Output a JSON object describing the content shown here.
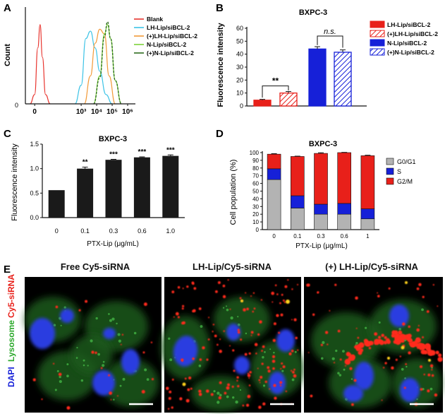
{
  "panels": {
    "A": {
      "letter": "A",
      "ylabel": "Count",
      "x_ticks": [
        "0",
        "10³",
        "10⁴",
        "10⁵",
        "10⁶"
      ],
      "y_tick": "0",
      "legend": [
        {
          "label": "Blank",
          "color": "#e8342e"
        },
        {
          "label": "LH-Lip/siBCL-2",
          "color": "#3cc3e6"
        },
        {
          "label": "(+)LH-Lip/siBCL-2",
          "color": "#f29a38"
        },
        {
          "label": "N-Lip/siBCL-2",
          "color": "#7dd23a"
        },
        {
          "label": "(+)N-Lip/siBCL-2",
          "color": "#2e6d1e"
        }
      ]
    },
    "B": {
      "letter": "B"
    },
    "C": {
      "letter": "C"
    },
    "D": {
      "letter": "D"
    },
    "E": {
      "letter": "E",
      "stain_labels": {
        "dapi": "DAPI",
        "lysosome": "Lysosome",
        "cy5": "Cy5-siRNA"
      },
      "images": [
        {
          "title": "Free Cy5-siRNA"
        },
        {
          "title": "LH-Lip/Cy5-siRNA"
        },
        {
          "title": "(+) LH-Lip/Cy5-siRNA"
        }
      ]
    }
  },
  "colors": {
    "red": "#e8201a",
    "blue": "#1620d8",
    "gray": "#b3b3b3",
    "black": "#1a1a1a"
  },
  "chart_data": [
    {
      "panel": "A",
      "type": "line",
      "xlabel": "",
      "ylabel": "Count",
      "x_ticks": [
        "0",
        "10³",
        "10⁴",
        "10⁵",
        "10⁶"
      ],
      "series": [
        {
          "name": "Blank",
          "x": [
            -0.3,
            0.0,
            0.2,
            0.35,
            0.5,
            0.7,
            1.0
          ],
          "y": [
            0,
            10,
            60,
            85,
            50,
            10,
            0
          ]
        },
        {
          "name": "LH-Lip/siBCL-2",
          "x": [
            2.6,
            3.0,
            3.3,
            3.6,
            3.9,
            4.2,
            4.6,
            5.0
          ],
          "y": [
            0,
            20,
            70,
            78,
            60,
            35,
            10,
            0
          ]
        },
        {
          "name": "(+)LH-Lip/siBCL-2",
          "x": [
            3.2,
            3.6,
            3.9,
            4.2,
            4.5,
            4.8,
            5.2
          ],
          "y": [
            0,
            30,
            65,
            80,
            75,
            30,
            0
          ]
        },
        {
          "name": "N-Lip/siBCL-2",
          "x": [
            3.8,
            4.2,
            4.5,
            4.7,
            4.9,
            5.2,
            5.6
          ],
          "y": [
            0,
            30,
            75,
            85,
            70,
            25,
            0
          ]
        },
        {
          "name": "(+)N-Lip/siBCL-2",
          "x": [
            3.8,
            4.2,
            4.5,
            4.7,
            4.9,
            5.2,
            5.6
          ],
          "y": [
            0,
            28,
            72,
            88,
            70,
            25,
            0
          ]
        }
      ]
    },
    {
      "panel": "B",
      "type": "bar",
      "title": "BXPC-3",
      "ylabel": "Fluorescence intensity",
      "ylim": [
        0,
        60
      ],
      "yticks": [
        0,
        10,
        20,
        30,
        40,
        50,
        60
      ],
      "categories": [
        "LH-Lip/siBCL-2",
        "(+)LH-Lip/siBCL-2",
        "N-Lip/siBCL-2",
        "(+)N-Lip/siBCL-2"
      ],
      "values": [
        4.5,
        10.0,
        44.0,
        41.5
      ],
      "errors": [
        0.6,
        1.2,
        1.8,
        1.8
      ],
      "colors": [
        "#e8201a",
        "#e8201a",
        "#1620d8",
        "#1620d8"
      ],
      "hatched": [
        false,
        true,
        false,
        true
      ],
      "annotations": [
        "**",
        "n.s."
      ],
      "legend": [
        "LH-Lip/siBCL-2",
        "(+)LH-Lip/siBCL-2",
        "N-Lip/siBCL-2",
        "(+)N-Lip/siBCL-2"
      ]
    },
    {
      "panel": "C",
      "type": "bar",
      "title": "BXPC-3",
      "xlabel": "PTX-Lip (μg/mL)",
      "ylabel": "Fluorescence intensity",
      "ylim": [
        0,
        1.5
      ],
      "yticks": [
        "0.0",
        "0.5",
        "1.0",
        "1.5"
      ],
      "categories": [
        "0",
        "0.1",
        "0.3",
        "0.6",
        "1.0"
      ],
      "values": [
        0.56,
        1.0,
        1.18,
        1.23,
        1.26
      ],
      "errors": [
        0.0,
        0.03,
        0.01,
        0.01,
        0.02
      ],
      "significance": [
        "",
        "**",
        "***",
        "***",
        "***"
      ]
    },
    {
      "panel": "D",
      "type": "bar",
      "title": "BXPC-3",
      "xlabel": "PTX-Lip (μg/mL)",
      "ylabel": "Cell population (%)",
      "ylim": [
        0,
        100
      ],
      "yticks": [
        0,
        10,
        20,
        30,
        40,
        50,
        60,
        70,
        80,
        90,
        100
      ],
      "categories": [
        "0",
        "0.1",
        "0.3",
        "0.6",
        "1"
      ],
      "series": [
        {
          "name": "G0/G1",
          "values": [
            65,
            28,
            20,
            20,
            14
          ],
          "color": "#b3b3b3"
        },
        {
          "name": "S",
          "values": [
            14,
            16,
            13,
            14,
            13
          ],
          "color": "#1620d8"
        },
        {
          "name": "G2/M",
          "values": [
            19,
            51,
            66,
            66,
            69
          ],
          "color": "#e8201a"
        }
      ],
      "errors": [
        0.6,
        0.4,
        0.8,
        0.3,
        0.6
      ]
    }
  ]
}
